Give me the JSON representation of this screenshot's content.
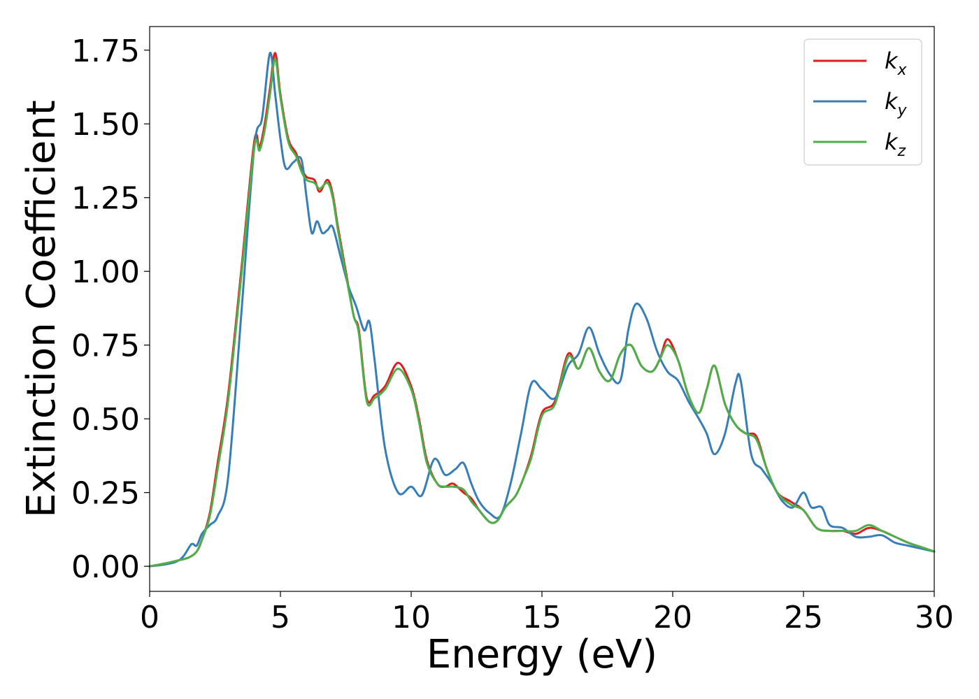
{
  "chart_data": {
    "type": "line",
    "xlabel": "Energy (eV)",
    "ylabel": "Extinction Coefficient",
    "xlim": [
      0,
      30
    ],
    "ylim": [
      -0.085,
      1.83
    ],
    "xticks": [
      0,
      5,
      10,
      15,
      20,
      25,
      30
    ],
    "xtick_labels": [
      "0",
      "5",
      "10",
      "15",
      "20",
      "25",
      "30"
    ],
    "yticks": [
      0.0,
      0.25,
      0.5,
      0.75,
      1.0,
      1.25,
      1.5,
      1.75
    ],
    "ytick_labels": [
      "0.00",
      "0.25",
      "0.50",
      "0.75",
      "1.00",
      "1.25",
      "1.50",
      "1.75"
    ],
    "grid": false,
    "legend_position": "top-right",
    "series": [
      {
        "name": "k",
        "subscript": "x",
        "color": "#e41a1c",
        "x": [
          0,
          0.5,
          1.0,
          1.5,
          1.8,
          2.0,
          2.3,
          2.6,
          3.0,
          3.5,
          4.0,
          4.2,
          4.4,
          4.6,
          4.8,
          5.0,
          5.3,
          5.6,
          5.8,
          6.0,
          6.3,
          6.5,
          6.8,
          7.0,
          7.2,
          7.5,
          7.8,
          8.0,
          8.3,
          8.6,
          9.0,
          9.5,
          10.0,
          10.3,
          10.6,
          11.0,
          11.3,
          11.6,
          12.0,
          12.3,
          12.6,
          13.0,
          13.3,
          13.6,
          14.0,
          14.3,
          14.6,
          15.0,
          15.5,
          16.0,
          16.4,
          16.8,
          17.2,
          17.6,
          18.0,
          18.4,
          18.8,
          19.2,
          19.5,
          19.8,
          20.2,
          20.6,
          21.0,
          21.3,
          21.6,
          22.0,
          22.4,
          22.8,
          23.2,
          23.6,
          24.0,
          24.5,
          25.0,
          25.5,
          26.0,
          26.5,
          27.0,
          27.5,
          28.0,
          28.5,
          29.0,
          29.5,
          30.0
        ],
        "y": [
          0.0,
          0.008,
          0.018,
          0.03,
          0.05,
          0.09,
          0.18,
          0.35,
          0.58,
          1.0,
          1.44,
          1.42,
          1.5,
          1.62,
          1.74,
          1.6,
          1.45,
          1.4,
          1.35,
          1.32,
          1.31,
          1.27,
          1.31,
          1.26,
          1.15,
          1.0,
          0.85,
          0.8,
          0.57,
          0.58,
          0.61,
          0.69,
          0.61,
          0.5,
          0.36,
          0.28,
          0.27,
          0.28,
          0.25,
          0.23,
          0.19,
          0.15,
          0.155,
          0.2,
          0.24,
          0.3,
          0.38,
          0.52,
          0.56,
          0.72,
          0.67,
          0.74,
          0.66,
          0.63,
          0.72,
          0.75,
          0.68,
          0.66,
          0.7,
          0.77,
          0.7,
          0.58,
          0.52,
          0.6,
          0.68,
          0.55,
          0.48,
          0.45,
          0.44,
          0.33,
          0.25,
          0.22,
          0.19,
          0.13,
          0.12,
          0.12,
          0.11,
          0.13,
          0.12,
          0.1,
          0.08,
          0.065,
          0.05
        ]
      },
      {
        "name": "k",
        "subscript": "y",
        "color": "#377eb8",
        "x": [
          0,
          0.5,
          1.0,
          1.3,
          1.6,
          1.8,
          2.0,
          2.3,
          2.6,
          3.0,
          3.5,
          4.0,
          4.3,
          4.6,
          4.8,
          5.0,
          5.2,
          5.5,
          5.8,
          6.0,
          6.2,
          6.4,
          6.6,
          6.8,
          7.0,
          7.3,
          7.6,
          7.9,
          8.2,
          8.4,
          8.6,
          9.0,
          9.5,
          10.0,
          10.4,
          10.8,
          11.0,
          11.3,
          11.7,
          12.0,
          12.3,
          12.6,
          13.0,
          13.4,
          13.8,
          14.2,
          14.6,
          15.0,
          15.5,
          16.0,
          16.4,
          16.8,
          17.2,
          17.6,
          18.0,
          18.3,
          18.6,
          19.0,
          19.4,
          19.8,
          20.2,
          20.6,
          21.0,
          21.3,
          21.6,
          22.0,
          22.4,
          22.6,
          23.0,
          23.4,
          23.8,
          24.2,
          24.6,
          25.0,
          25.3,
          25.7,
          26.0,
          26.5,
          27.0,
          27.5,
          28.0,
          28.5,
          29.0,
          29.5,
          30.0
        ],
        "y": [
          0.0,
          0.005,
          0.015,
          0.035,
          0.075,
          0.07,
          0.11,
          0.14,
          0.17,
          0.3,
          0.85,
          1.42,
          1.52,
          1.74,
          1.6,
          1.45,
          1.35,
          1.37,
          1.38,
          1.25,
          1.13,
          1.17,
          1.13,
          1.14,
          1.15,
          1.05,
          0.95,
          0.88,
          0.8,
          0.83,
          0.7,
          0.4,
          0.25,
          0.27,
          0.24,
          0.35,
          0.36,
          0.31,
          0.33,
          0.35,
          0.28,
          0.22,
          0.18,
          0.17,
          0.28,
          0.45,
          0.62,
          0.6,
          0.57,
          0.68,
          0.72,
          0.81,
          0.72,
          0.65,
          0.63,
          0.8,
          0.89,
          0.84,
          0.73,
          0.66,
          0.63,
          0.56,
          0.5,
          0.45,
          0.38,
          0.45,
          0.62,
          0.63,
          0.38,
          0.33,
          0.28,
          0.22,
          0.2,
          0.25,
          0.2,
          0.2,
          0.14,
          0.13,
          0.1,
          0.1,
          0.105,
          0.08,
          0.07,
          0.06,
          0.05
        ]
      },
      {
        "name": "k",
        "subscript": "z",
        "color": "#4daf4a",
        "x": [
          0,
          0.5,
          1.0,
          1.5,
          1.8,
          2.0,
          2.3,
          2.6,
          3.0,
          3.5,
          4.0,
          4.2,
          4.4,
          4.6,
          4.8,
          5.0,
          5.3,
          5.6,
          5.8,
          6.0,
          6.3,
          6.5,
          6.8,
          7.0,
          7.2,
          7.5,
          7.8,
          8.0,
          8.3,
          8.6,
          9.0,
          9.5,
          10.0,
          10.3,
          10.6,
          11.0,
          11.3,
          11.6,
          12.0,
          12.3,
          12.6,
          13.0,
          13.3,
          13.6,
          14.0,
          14.3,
          14.6,
          15.0,
          15.5,
          16.0,
          16.4,
          16.8,
          17.2,
          17.6,
          18.0,
          18.4,
          18.8,
          19.2,
          19.5,
          19.8,
          20.2,
          20.6,
          21.0,
          21.3,
          21.6,
          22.0,
          22.4,
          22.8,
          23.2,
          23.6,
          24.0,
          24.5,
          25.0,
          25.5,
          26.0,
          26.5,
          27.0,
          27.5,
          28.0,
          28.5,
          29.0,
          29.5,
          30.0
        ],
        "y": [
          0.0,
          0.008,
          0.018,
          0.03,
          0.05,
          0.09,
          0.17,
          0.33,
          0.56,
          0.98,
          1.42,
          1.41,
          1.48,
          1.6,
          1.72,
          1.59,
          1.44,
          1.39,
          1.34,
          1.31,
          1.3,
          1.28,
          1.3,
          1.25,
          1.14,
          0.99,
          0.85,
          0.79,
          0.56,
          0.57,
          0.6,
          0.67,
          0.6,
          0.49,
          0.35,
          0.28,
          0.27,
          0.27,
          0.26,
          0.22,
          0.19,
          0.15,
          0.155,
          0.2,
          0.24,
          0.3,
          0.37,
          0.51,
          0.55,
          0.71,
          0.67,
          0.74,
          0.66,
          0.63,
          0.72,
          0.75,
          0.68,
          0.66,
          0.7,
          0.75,
          0.7,
          0.58,
          0.52,
          0.6,
          0.68,
          0.55,
          0.48,
          0.45,
          0.43,
          0.33,
          0.25,
          0.21,
          0.19,
          0.13,
          0.12,
          0.12,
          0.12,
          0.14,
          0.12,
          0.1,
          0.08,
          0.065,
          0.05
        ]
      }
    ]
  }
}
